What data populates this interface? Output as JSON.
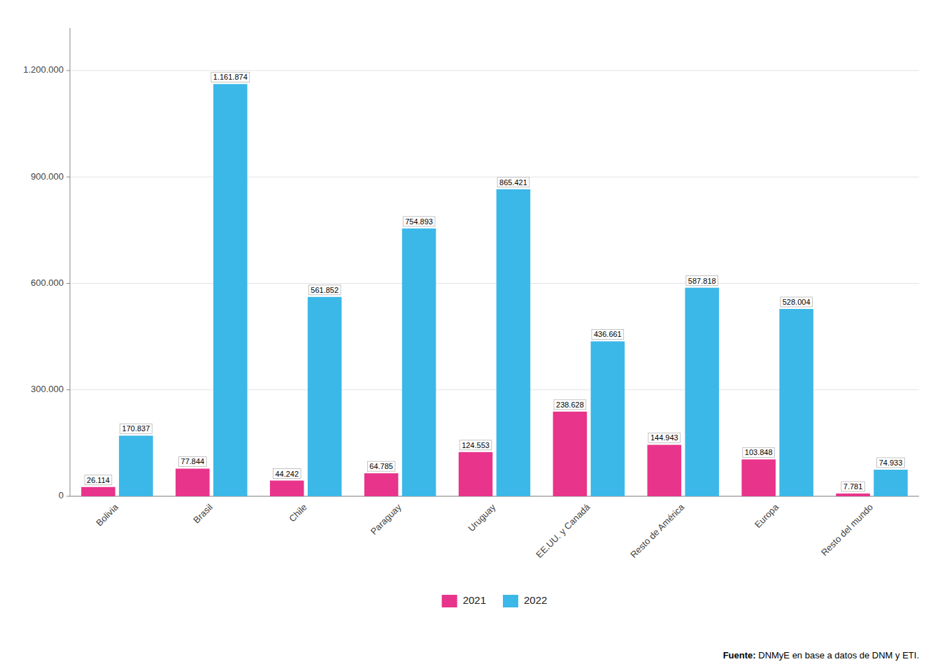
{
  "chart_data": {
    "type": "bar",
    "categories": [
      "Bolivia",
      "Brasil",
      "Chile",
      "Paraguay",
      "Uruguay",
      "EE.UU. y Canadá",
      "Resto de América",
      "Europa",
      "Resto del mundo"
    ],
    "series": [
      {
        "name": "2021",
        "color": "#E8348B",
        "values": [
          26114,
          77844,
          44242,
          64785,
          124553,
          238628,
          144943,
          103848,
          7781
        ],
        "value_labels": [
          "26.114",
          "77.844",
          "44.242",
          "64.785",
          "124.553",
          "238.628",
          "144.943",
          "103.848",
          "7.781"
        ]
      },
      {
        "name": "2022",
        "color": "#3BB8E8",
        "values": [
          170837,
          1161874,
          561852,
          754893,
          865421,
          436661,
          587818,
          528004,
          74933
        ],
        "value_labels": [
          "170.837",
          "1.161.874",
          "561.852",
          "754.893",
          "865.421",
          "436.661",
          "587.818",
          "528.004",
          "74.933"
        ]
      }
    ],
    "ylim": [
      0,
      1320000
    ],
    "yticks": [
      0,
      {
        "value": 300000,
        "label": "300.000"
      },
      {
        "value": 600000,
        "label": "600.000"
      },
      {
        "value": 900000,
        "label": "900.000"
      },
      {
        "value": 1200000,
        "label": "1.200.000"
      }
    ],
    "grid": true,
    "legend": "bottom",
    "data_labels": true,
    "annotations": [
      "Fuente:",
      " DNMyE en base a datos de DNM y ETI."
    ]
  }
}
